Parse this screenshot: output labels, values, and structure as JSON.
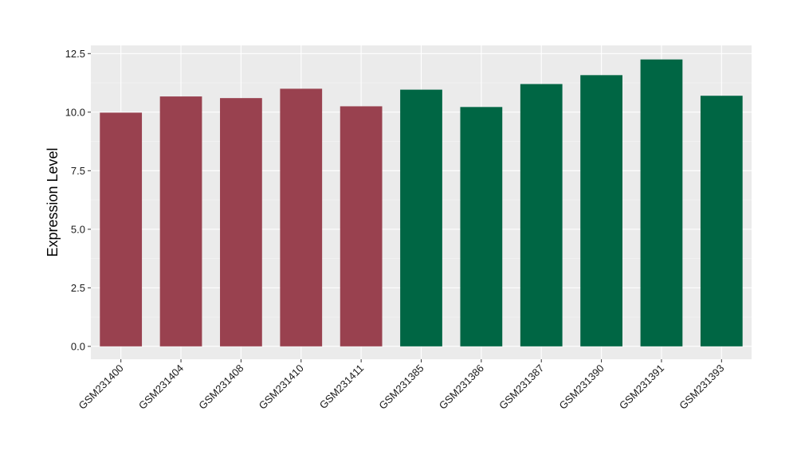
{
  "chart_data": {
    "type": "bar",
    "title": "",
    "xlabel": "",
    "ylabel": "Expression Level",
    "ylim": [
      -0.55,
      12.85
    ],
    "yticks": [
      0.0,
      2.5,
      5.0,
      7.5,
      10.0,
      12.5
    ],
    "ytick_labels": [
      "0.0",
      "2.5",
      "5.0",
      "7.5",
      "10.0",
      "12.5"
    ],
    "grid": true,
    "legend": "none",
    "categories": [
      "GSM231400",
      "GSM231404",
      "GSM231408",
      "GSM231410",
      "GSM231411",
      "GSM231385",
      "GSM231386",
      "GSM231387",
      "GSM231390",
      "GSM231391",
      "GSM231393"
    ],
    "values": [
      9.98,
      10.67,
      10.6,
      11.0,
      10.25,
      10.96,
      10.22,
      11.2,
      11.58,
      12.25,
      10.7
    ],
    "colors": [
      "#99414f",
      "#99414f",
      "#99414f",
      "#99414f",
      "#99414f",
      "#006644",
      "#006644",
      "#006644",
      "#006644",
      "#006644",
      "#006644"
    ]
  }
}
